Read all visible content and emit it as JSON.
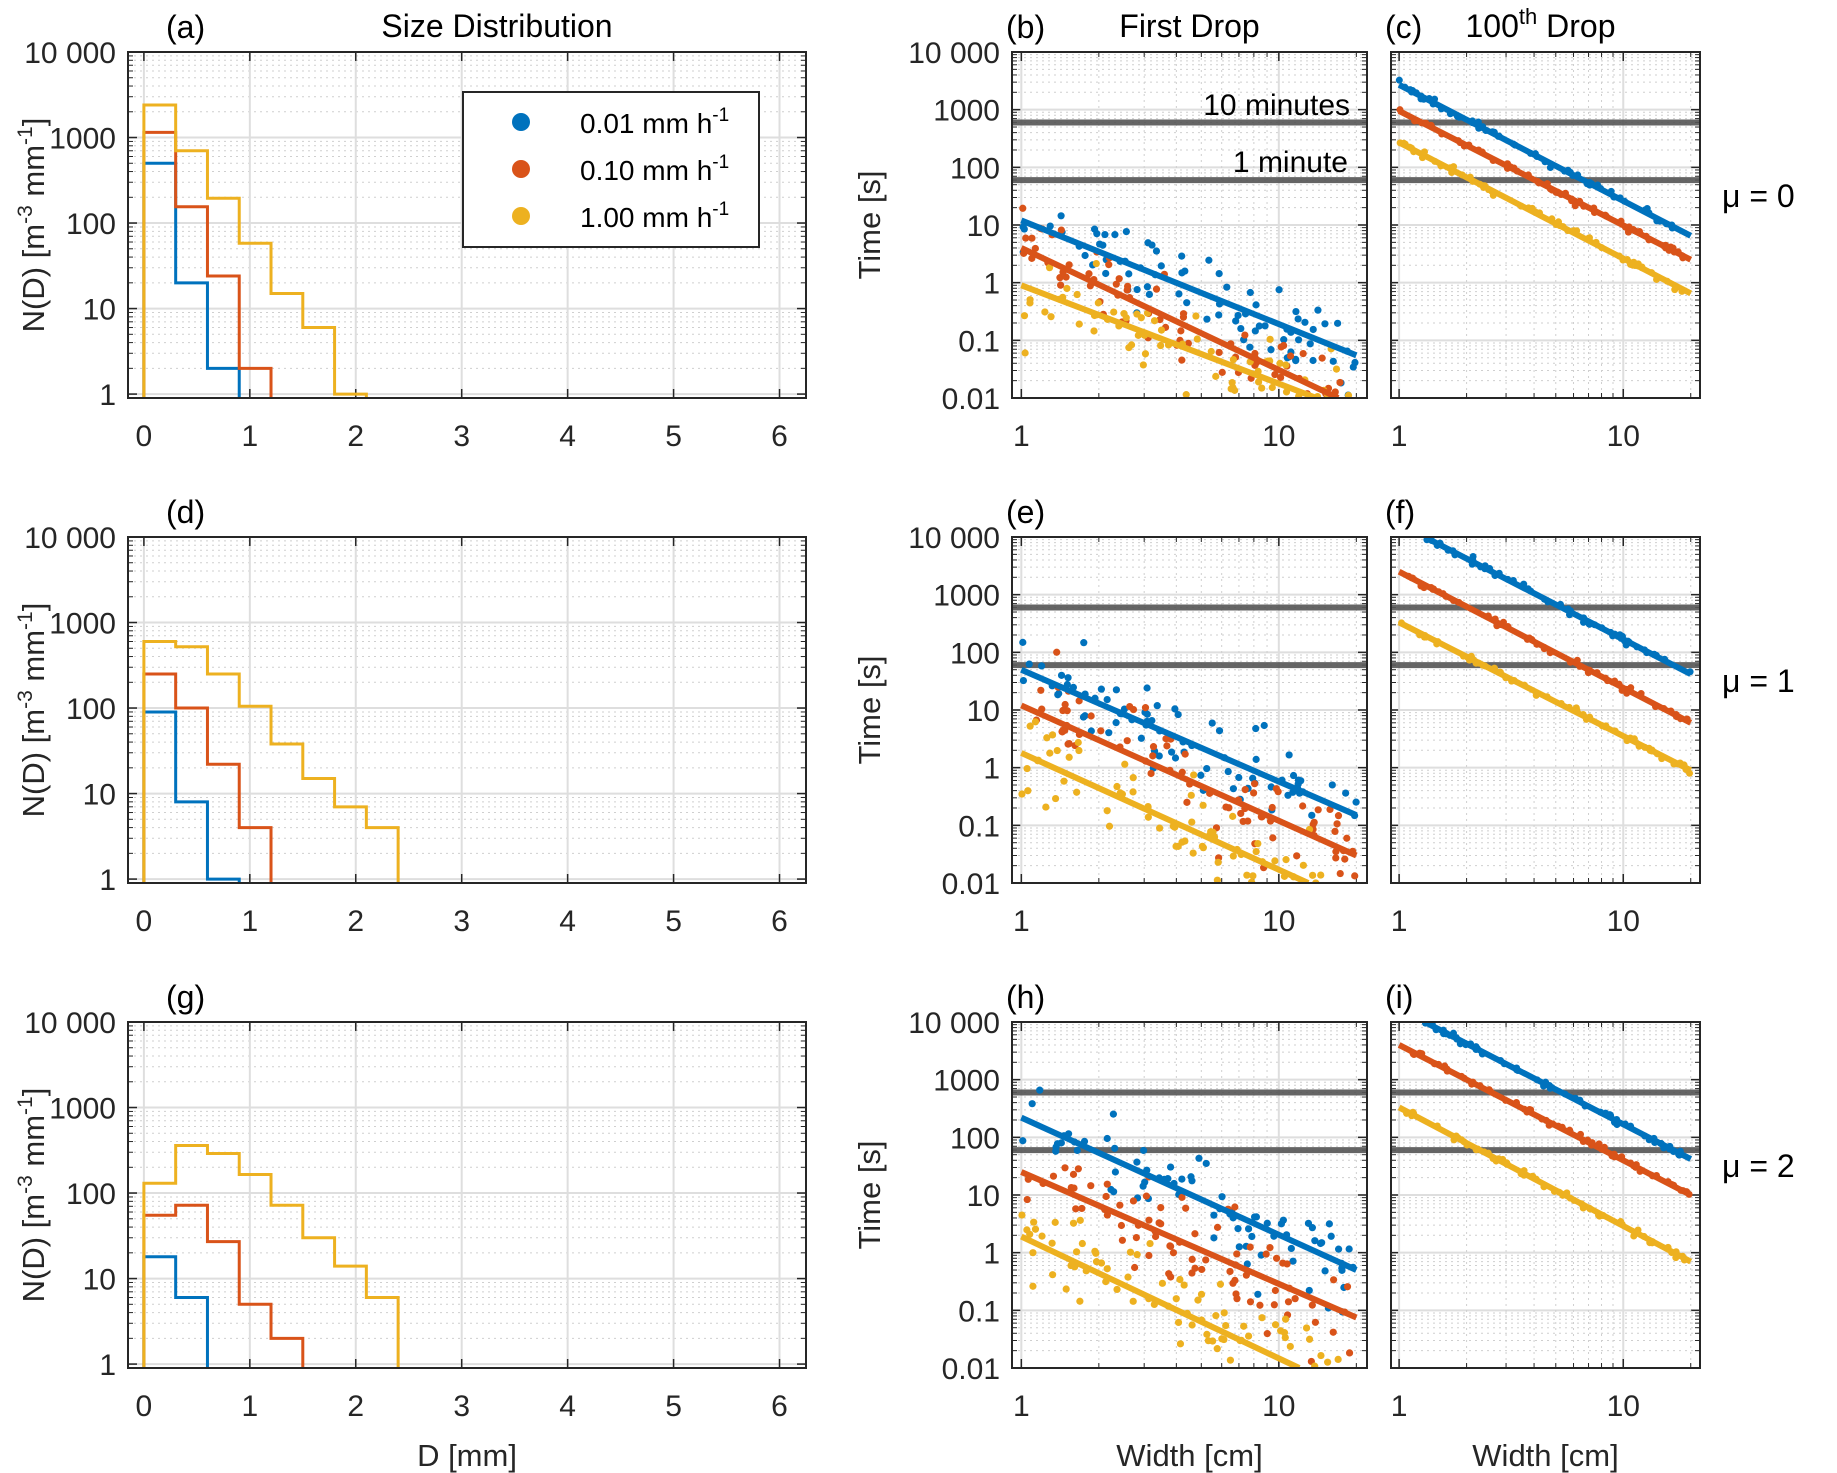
{
  "figure": {
    "column_titles": {
      "size_distribution": "Size Distribution",
      "first_drop": "First Drop",
      "hundredth_drop_base": "100",
      "hundredth_drop_sup": "th",
      "hundredth_drop_rest": " Drop"
    },
    "row_labels": [
      "μ = 0",
      "μ = 1",
      "μ = 2"
    ],
    "legend": {
      "entries": [
        {
          "label": "0.01 mm h",
          "sup": "-1",
          "color": "#0072BD"
        },
        {
          "label": "0.10 mm h",
          "sup": "-1",
          "color": "#D95319"
        },
        {
          "label": "1.00 mm h",
          "sup": "-1",
          "color": "#EDB120"
        }
      ]
    },
    "annotations": {
      "ten_minutes": "10 minutes",
      "one_minute": "1 minute"
    },
    "reference_lines_s": [
      600,
      60
    ],
    "reference_line_color": "#555555"
  },
  "chart_data": [
    {
      "panel": "(a)",
      "type": "line",
      "step": true,
      "title": "Size Distribution",
      "xlabel": "",
      "ylabel": "N(D) [m^-3 mm^-1]",
      "xscale": "linear",
      "yscale": "log",
      "xlim": [
        -0.15,
        6.25
      ],
      "ylim": [
        0.9,
        10000
      ],
      "xticks": [
        "0",
        "1",
        "2",
        "3",
        "4",
        "5",
        "6"
      ],
      "yticks": [
        "1",
        "10",
        "100",
        "1000",
        "10 000"
      ],
      "bin_edges": [
        0,
        0.3,
        0.6,
        0.9,
        1.2,
        1.5,
        1.8,
        2.1,
        2.4
      ],
      "series": [
        {
          "name": "0.01 mm h-1",
          "values": [
            500,
            20,
            2
          ]
        },
        {
          "name": "0.10 mm h-1",
          "values": [
            1150,
            155,
            24,
            2
          ]
        },
        {
          "name": "1.00 mm h-1",
          "values": [
            2400,
            700,
            195,
            58,
            15,
            6,
            1
          ]
        }
      ]
    },
    {
      "panel": "(b)",
      "type": "scatter",
      "title": "First Drop",
      "xlabel": "",
      "ylabel": "Time [s]",
      "xscale": "log",
      "yscale": "log",
      "xlim": [
        0.92,
        22
      ],
      "ylim": [
        0.01,
        10000
      ],
      "xticks": [
        "1",
        "10"
      ],
      "yticks": [
        "0.01",
        "0.1",
        "1",
        "10",
        "100",
        "1000",
        "10 000"
      ],
      "fit_lines": [
        {
          "name": "0.01 mm h-1",
          "x": [
            1,
            20
          ],
          "y": [
            12,
            0.055
          ]
        },
        {
          "name": "0.10 mm h-1",
          "x": [
            1,
            17
          ],
          "y": [
            4,
            0.01
          ]
        },
        {
          "name": "1.00 mm h-1",
          "x": [
            1,
            14
          ],
          "y": [
            0.9,
            0.01
          ]
        }
      ],
      "scatter_spread_decades": 0.55
    },
    {
      "panel": "(c)",
      "type": "line",
      "title": "100th Drop",
      "xlabel": "",
      "ylabel": "",
      "xscale": "log",
      "yscale": "log",
      "xlim": [
        0.92,
        22
      ],
      "ylim": [
        0.01,
        10000
      ],
      "xticks": [
        "1",
        "10"
      ],
      "yticks": [],
      "fit_lines": [
        {
          "name": "0.01 mm h-1",
          "x": [
            1,
            20
          ],
          "y": [
            2700,
            6.5
          ]
        },
        {
          "name": "0.10 mm h-1",
          "x": [
            1,
            20
          ],
          "y": [
            950,
            2.5
          ]
        },
        {
          "name": "1.00 mm h-1",
          "x": [
            1,
            20
          ],
          "y": [
            270,
            0.65
          ]
        }
      ]
    },
    {
      "panel": "(d)",
      "type": "line",
      "step": true,
      "xlabel": "",
      "ylabel": "N(D) [m^-3 mm^-1]",
      "xscale": "linear",
      "yscale": "log",
      "xlim": [
        -0.15,
        6.25
      ],
      "ylim": [
        0.9,
        10000
      ],
      "xticks": [
        "0",
        "1",
        "2",
        "3",
        "4",
        "5",
        "6"
      ],
      "yticks": [
        "1",
        "10",
        "100",
        "1000",
        "10 000"
      ],
      "bin_edges": [
        0,
        0.3,
        0.6,
        0.9,
        1.2,
        1.5,
        1.8,
        2.1,
        2.4
      ],
      "series": [
        {
          "name": "0.01 mm h-1",
          "values": [
            90,
            8,
            1
          ]
        },
        {
          "name": "0.10 mm h-1",
          "values": [
            250,
            100,
            22,
            4
          ]
        },
        {
          "name": "1.00 mm h-1",
          "values": [
            600,
            520,
            250,
            105,
            38,
            15,
            7,
            4
          ]
        }
      ]
    },
    {
      "panel": "(e)",
      "type": "scatter",
      "xlabel": "",
      "ylabel": "Time [s]",
      "xscale": "log",
      "yscale": "log",
      "xlim": [
        0.92,
        22
      ],
      "ylim": [
        0.01,
        10000
      ],
      "xticks": [
        "1",
        "10"
      ],
      "yticks": [
        "0.01",
        "0.1",
        "1",
        "10",
        "100",
        "1000",
        "10 000"
      ],
      "fit_lines": [
        {
          "name": "0.01 mm h-1",
          "x": [
            1,
            20
          ],
          "y": [
            50,
            0.15
          ]
        },
        {
          "name": "0.10 mm h-1",
          "x": [
            1,
            20
          ],
          "y": [
            12,
            0.03
          ]
        },
        {
          "name": "1.00 mm h-1",
          "x": [
            1,
            13
          ],
          "y": [
            1.8,
            0.01
          ]
        }
      ],
      "scatter_spread_decades": 0.65
    },
    {
      "panel": "(f)",
      "type": "line",
      "xlabel": "",
      "ylabel": "",
      "xscale": "log",
      "yscale": "log",
      "xlim": [
        0.92,
        22
      ],
      "ylim": [
        0.01,
        10000
      ],
      "xticks": [
        "1",
        "10"
      ],
      "yticks": [],
      "fit_lines": [
        {
          "name": "0.01 mm h-1",
          "x": [
            1.3,
            20
          ],
          "y": [
            10000,
            42
          ]
        },
        {
          "name": "0.10 mm h-1",
          "x": [
            1,
            20
          ],
          "y": [
            2500,
            6
          ]
        },
        {
          "name": "1.00 mm h-1",
          "x": [
            1,
            20
          ],
          "y": [
            330,
            0.9
          ]
        }
      ]
    },
    {
      "panel": "(g)",
      "type": "line",
      "step": true,
      "xlabel": "D [mm]",
      "ylabel": "N(D) [m^-3 mm^-1]",
      "xscale": "linear",
      "yscale": "log",
      "xlim": [
        -0.15,
        6.25
      ],
      "ylim": [
        0.9,
        10000
      ],
      "xticks": [
        "0",
        "1",
        "2",
        "3",
        "4",
        "5",
        "6"
      ],
      "yticks": [
        "1",
        "10",
        "100",
        "1000",
        "10 000"
      ],
      "bin_edges": [
        0,
        0.3,
        0.6,
        0.9,
        1.2,
        1.5,
        1.8,
        2.1,
        2.4
      ],
      "series": [
        {
          "name": "0.01 mm h-1",
          "values": [
            18,
            6
          ]
        },
        {
          "name": "0.10 mm h-1",
          "values": [
            55,
            72,
            27,
            5,
            2
          ]
        },
        {
          "name": "1.00 mm h-1",
          "values": [
            130,
            360,
            290,
            165,
            72,
            30,
            14,
            6
          ]
        }
      ]
    },
    {
      "panel": "(h)",
      "type": "scatter",
      "xlabel": "Width [cm]",
      "ylabel": "Time [s]",
      "xscale": "log",
      "yscale": "log",
      "xlim": [
        0.92,
        22
      ],
      "ylim": [
        0.01,
        10000
      ],
      "xticks": [
        "1",
        "10"
      ],
      "yticks": [
        "0.01",
        "0.1",
        "1",
        "10",
        "100",
        "1000",
        "10 000"
      ],
      "fit_lines": [
        {
          "name": "0.01 mm h-1",
          "x": [
            1,
            20
          ],
          "y": [
            220,
            0.5
          ]
        },
        {
          "name": "0.10 mm h-1",
          "x": [
            1,
            20
          ],
          "y": [
            25,
            0.075
          ]
        },
        {
          "name": "1.00 mm h-1",
          "x": [
            1,
            12
          ],
          "y": [
            1.9,
            0.01
          ]
        }
      ],
      "scatter_spread_decades": 0.7
    },
    {
      "panel": "(i)",
      "type": "line",
      "xlabel": "Width [cm]",
      "ylabel": "",
      "xscale": "log",
      "yscale": "log",
      "xlim": [
        0.92,
        22
      ],
      "ylim": [
        0.01,
        10000
      ],
      "xticks": [
        "1",
        "10"
      ],
      "yticks": [],
      "fit_lines": [
        {
          "name": "0.01 mm h-1",
          "x": [
            1.3,
            20
          ],
          "y": [
            10000,
            42
          ]
        },
        {
          "name": "0.10 mm h-1",
          "x": [
            1,
            20
          ],
          "y": [
            4000,
            10
          ]
        },
        {
          "name": "1.00 mm h-1",
          "x": [
            1,
            20
          ],
          "y": [
            330,
            0.7
          ]
        }
      ]
    }
  ]
}
